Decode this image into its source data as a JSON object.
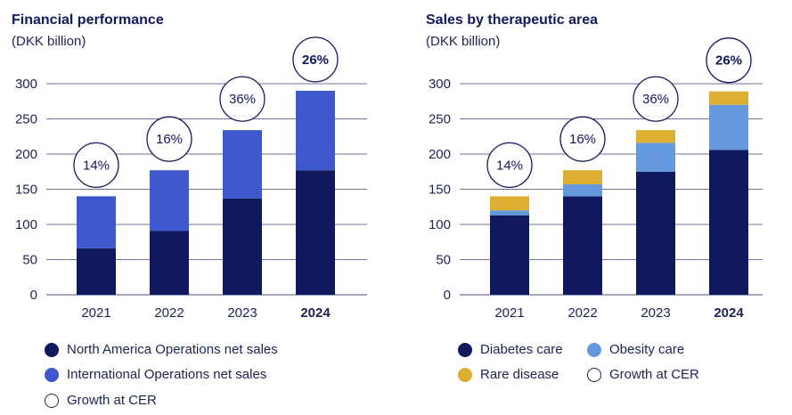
{
  "chart_data": [
    {
      "type": "bar",
      "stacked": true,
      "title": "Financial performance",
      "subtitle": "(DKK billion)",
      "categories": [
        "2021",
        "2022",
        "2023",
        "2024"
      ],
      "bold_category": "2024",
      "yticks": [
        "0",
        "50",
        "100",
        "150",
        "200",
        "250",
        "300"
      ],
      "ylim": [
        0,
        300
      ],
      "grid": true,
      "series": [
        {
          "name": "North America Operations net sales",
          "color": "#11195e",
          "values": [
            66,
            91,
            137,
            177
          ]
        },
        {
          "name": "International Operations net sales",
          "color": "#3d57cc",
          "values": [
            74,
            86,
            97,
            113
          ]
        }
      ],
      "growth": {
        "name": "Growth at CER",
        "labels": [
          "14%",
          "16%",
          "36%",
          "26%"
        ],
        "bold_index": 3
      },
      "legend_position": "bottom"
    },
    {
      "type": "bar",
      "stacked": true,
      "title": "Sales by therapeutic area",
      "subtitle": "(DKK billion)",
      "categories": [
        "2021",
        "2022",
        "2023",
        "2024"
      ],
      "bold_category": "2024",
      "yticks": [
        "0",
        "50",
        "100",
        "150",
        "200",
        "250",
        "300"
      ],
      "ylim": [
        0,
        300
      ],
      "grid": true,
      "series": [
        {
          "name": "Diabetes care",
          "color": "#11195e",
          "values": [
            113,
            140,
            175,
            206
          ]
        },
        {
          "name": "Obesity care",
          "color": "#6499dd",
          "values": [
            7,
            17,
            41,
            64
          ]
        },
        {
          "name": "Rare disease",
          "color": "#dcae32",
          "values": [
            20,
            20,
            18,
            19
          ]
        }
      ],
      "growth": {
        "name": "Growth at CER",
        "labels": [
          "14%",
          "16%",
          "36%",
          "26%"
        ],
        "bold_index": 3
      },
      "legend_position": "bottom"
    }
  ]
}
